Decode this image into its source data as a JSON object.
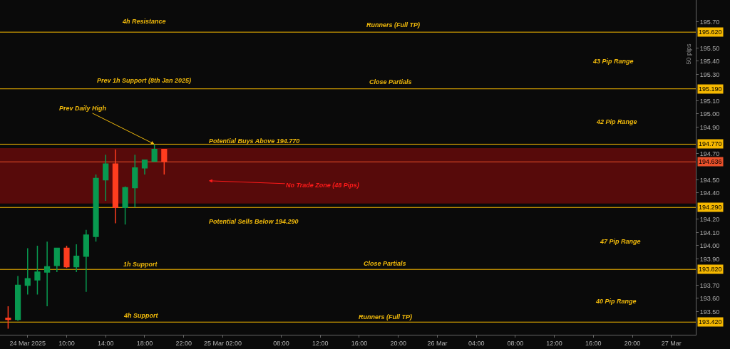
{
  "chart_data": {
    "type": "candlestick",
    "x": [
      "2025-03-24T04:00",
      "2025-03-24T05:00",
      "2025-03-24T06:00",
      "2025-03-24T07:00",
      "2025-03-24T08:00",
      "2025-03-24T09:00",
      "2025-03-24T10:00",
      "2025-03-24T11:00",
      "2025-03-24T12:00",
      "2025-03-24T13:00",
      "2025-03-24T14:00",
      "2025-03-24T15:00",
      "2025-03-24T16:00",
      "2025-03-24T17:00",
      "2025-03-24T18:00",
      "2025-03-24T19:00",
      "2025-03-24T20:00"
    ],
    "ohlc": [
      [
        193.45,
        193.54,
        193.37,
        193.44
      ],
      [
        193.44,
        193.77,
        193.43,
        193.7
      ],
      [
        193.7,
        193.98,
        193.63,
        193.75
      ],
      [
        193.74,
        194.0,
        193.63,
        193.8
      ],
      [
        193.8,
        194.03,
        193.54,
        193.84
      ],
      [
        193.85,
        193.98,
        193.8,
        193.98
      ],
      [
        193.98,
        194.0,
        193.83,
        193.84
      ],
      [
        193.84,
        194.01,
        193.8,
        193.92
      ],
      [
        193.92,
        194.12,
        193.65,
        194.08
      ],
      [
        194.07,
        194.54,
        194.03,
        194.51
      ],
      [
        194.5,
        194.69,
        194.34,
        194.62
      ],
      [
        194.62,
        194.73,
        194.17,
        194.29
      ],
      [
        194.29,
        194.45,
        194.16,
        194.44
      ],
      [
        194.44,
        194.69,
        194.29,
        194.59
      ],
      [
        194.59,
        194.65,
        194.54,
        194.65
      ],
      [
        194.64,
        194.77,
        194.64,
        194.73
      ],
      [
        194.73,
        194.73,
        194.54,
        194.64
      ]
    ],
    "colors": [
      "#ff3d1f",
      "#089950",
      "#089950",
      "#089950",
      "#089950",
      "#089950",
      "#ff3d1f",
      "#089950",
      "#089950",
      "#089950",
      "#089950",
      "#ff3d1f",
      "#089950",
      "#089950",
      "#089950",
      "#089950",
      "#ff3d1f"
    ],
    "xlim": [
      "2025-03-24T03:10",
      "2025-03-27T02:30"
    ],
    "xticks": [
      {
        "value": "2025-03-24T06:00",
        "label": "24 Mar 2025"
      },
      {
        "value": "2025-03-24T10:00",
        "label": "10:00"
      },
      {
        "value": "2025-03-24T14:00",
        "label": "14:00"
      },
      {
        "value": "2025-03-24T18:00",
        "label": "18:00"
      },
      {
        "value": "2025-03-24T22:00",
        "label": "22:00"
      },
      {
        "value": "2025-03-25T02:00",
        "label": "25 Mar 02:00"
      },
      {
        "value": "2025-03-25T08:00",
        "label": "08:00"
      },
      {
        "value": "2025-03-25T12:00",
        "label": "12:00"
      },
      {
        "value": "2025-03-25T16:00",
        "label": "16:00"
      },
      {
        "value": "2025-03-25T20:00",
        "label": "20:00"
      },
      {
        "value": "2025-03-26T00:00",
        "label": "26 Mar"
      },
      {
        "value": "2025-03-26T04:00",
        "label": "04:00"
      },
      {
        "value": "2025-03-26T08:00",
        "label": "08:00"
      },
      {
        "value": "2025-03-26T12:00",
        "label": "12:00"
      },
      {
        "value": "2025-03-26T16:00",
        "label": "16:00"
      },
      {
        "value": "2025-03-26T20:00",
        "label": "20:00"
      },
      {
        "value": "2025-03-27T00:00",
        "label": "27 Mar"
      }
    ],
    "ylim": [
      193.324,
      195.864
    ],
    "yticks": [
      {
        "value": 195.7,
        "label": "195.70"
      },
      {
        "value": 195.5,
        "label": "195.50"
      },
      {
        "value": 195.4,
        "label": "195.40"
      },
      {
        "value": 195.3,
        "label": "195.30"
      },
      {
        "value": 195.1,
        "label": "195.10"
      },
      {
        "value": 195.0,
        "label": "195.00"
      },
      {
        "value": 194.9,
        "label": "194.90"
      },
      {
        "value": 194.7,
        "label": "194.70"
      },
      {
        "value": 194.5,
        "label": "194.50"
      },
      {
        "value": 194.4,
        "label": "194.40"
      },
      {
        "value": 194.2,
        "label": "194.20"
      },
      {
        "value": 194.1,
        "label": "194.10"
      },
      {
        "value": 194.0,
        "label": "194.00"
      },
      {
        "value": 193.9,
        "label": "193.90"
      },
      {
        "value": 193.7,
        "label": "193.70"
      },
      {
        "value": 193.6,
        "label": "193.60"
      },
      {
        "value": 193.5,
        "label": "193.50"
      }
    ],
    "ref_lines": [
      {
        "axis": "y",
        "value": 195.62,
        "label": "195.620",
        "color": "#f5b800"
      },
      {
        "axis": "y",
        "value": 195.19,
        "label": "195.190",
        "color": "#f5b800"
      },
      {
        "axis": "y",
        "value": 194.77,
        "label": "194.770",
        "color": "#f5b800"
      },
      {
        "axis": "y",
        "value": 194.636,
        "label": "194.636",
        "color": "#e8502a"
      },
      {
        "axis": "y",
        "value": 194.29,
        "label": "194.290",
        "color": "#f5b800"
      },
      {
        "axis": "y",
        "value": 193.82,
        "label": "193.820",
        "color": "#f5b800"
      },
      {
        "axis": "y",
        "value": 193.42,
        "label": "193.420",
        "color": "#f5b800"
      }
    ],
    "bands": [
      {
        "axis": "y",
        "from": 194.32,
        "to": 194.74,
        "color": "#8b0a0a"
      }
    ],
    "annotations": [
      "4h Resistance",
      "Runners (Full TP)",
      "Prev 1h Support (8th Jan 2025)",
      "Close Partials",
      {
        "text": "Prev Daily High",
        "x": "2025-03-24T19:00",
        "y": 194.77
      },
      "Potential Buys Above 194.770",
      "No Trade Zone (48 Pips)",
      "Potential Sells Below 194.290",
      "1h Support",
      "Close Partials",
      "4h Support",
      "Runners (Full TP)",
      "43 Pip Range",
      "42 Pip Range",
      "47 Pip Range",
      "40 Pip Range",
      "50 pips"
    ],
    "grid": false
  }
}
